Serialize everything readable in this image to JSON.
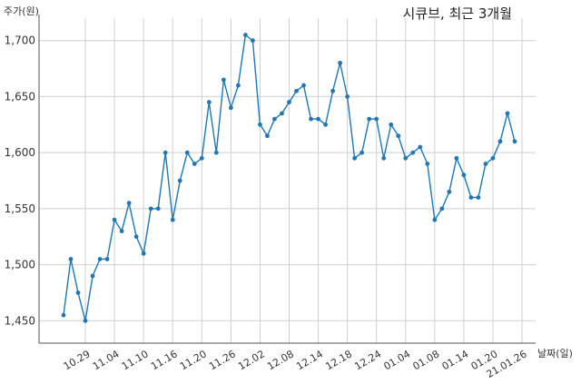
{
  "chart_data": {
    "type": "line",
    "title": "시큐브, 최근 3개월",
    "ylabel": "주가(원)",
    "xlabel": "날짜(일)",
    "ylim": [
      1430,
      1720
    ],
    "y_ticks": [
      "1,450",
      "1,500",
      "1,550",
      "1,600",
      "1,650",
      "1,700"
    ],
    "y_tick_values": [
      1450,
      1500,
      1550,
      1600,
      1650,
      1700
    ],
    "x_tick_labels": [
      "10.29",
      "11.04",
      "11.10",
      "11.16",
      "11.20",
      "11.26",
      "12.02",
      "12.08",
      "12.14",
      "12.18",
      "12.24",
      "01.04",
      "01.08",
      "01.14",
      "01.20",
      "21.01.26"
    ],
    "x_tick_index": [
      3,
      7,
      11,
      15,
      19,
      23,
      27,
      31,
      35,
      39,
      43,
      47,
      51,
      55,
      59,
      63
    ],
    "grid": true,
    "series": [
      {
        "color": "#1f77b4",
        "values": [
          1455,
          1505,
          1475,
          1450,
          1490,
          1505,
          1505,
          1540,
          1530,
          1555,
          1525,
          1510,
          1550,
          1550,
          1600,
          1540,
          1575,
          1600,
          1590,
          1595,
          1645,
          1600,
          1665,
          1640,
          1660,
          1705,
          1700,
          1625,
          1615,
          1630,
          1635,
          1645,
          1655,
          1660,
          1630,
          1630,
          1625,
          1655,
          1680,
          1650,
          1595,
          1600,
          1630,
          1630,
          1595,
          1625,
          1615,
          1595,
          1600,
          1605,
          1590,
          1540,
          1550,
          1565,
          1595,
          1580,
          1560,
          1560,
          1590,
          1595,
          1610,
          1635,
          1610
        ]
      }
    ]
  }
}
